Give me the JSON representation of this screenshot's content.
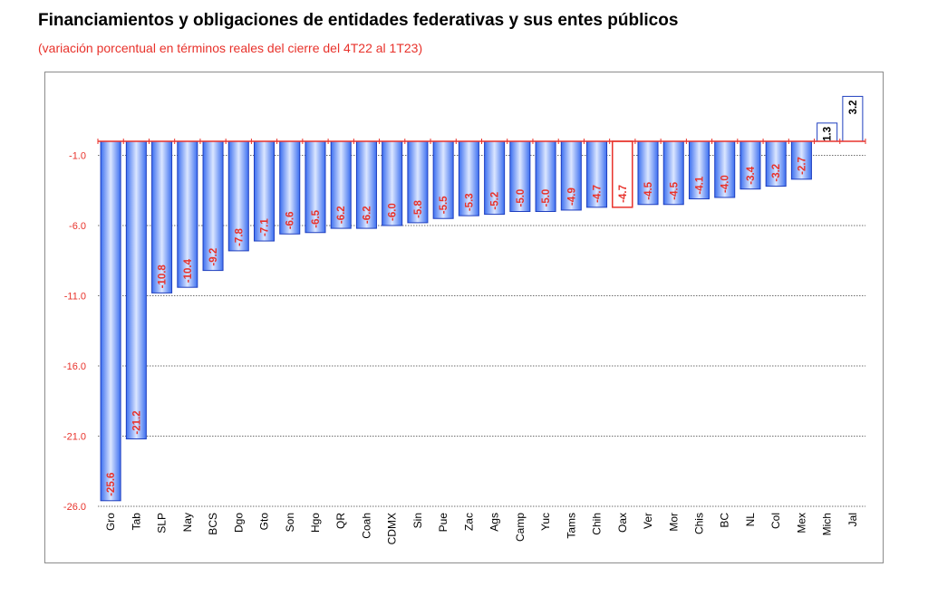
{
  "header": {
    "title": "Financiamientos y obligaciones de entidades federativas y sus entes públicos",
    "subtitle": "(variación porcentual en términos reales del cierre del 4T22 al 1T23)"
  },
  "chart_data": {
    "type": "bar",
    "title": "Financiamientos y obligaciones de entidades federativas y sus entes públicos",
    "subtitle": "(variación porcentual en términos reales del cierre del 4T22 al 1T23)",
    "categories": [
      "Gro",
      "Tab",
      "SLP",
      "Nay",
      "BCS",
      "Dgo",
      "Gto",
      "Son",
      "Hgo",
      "QR",
      "Coah",
      "CDMX",
      "Sin",
      "Pue",
      "Zac",
      "Ags",
      "Camp",
      "Yuc",
      "Tams",
      "Chih",
      "Oax",
      "Ver",
      "Mor",
      "Chis",
      "BC",
      "NL",
      "Col",
      "Mex",
      "Mich",
      "Jal"
    ],
    "values": [
      -25.6,
      -21.2,
      -10.8,
      -10.4,
      -9.2,
      -7.8,
      -7.1,
      -6.6,
      -6.5,
      -6.2,
      -6.2,
      -6.0,
      -5.8,
      -5.5,
      -5.3,
      -5.2,
      -5.0,
      -5.0,
      -4.9,
      -4.7,
      -4.7,
      -4.5,
      -4.5,
      -4.1,
      -4.0,
      -3.4,
      -3.2,
      -2.7,
      1.3,
      3.2
    ],
    "data_labels": [
      "-25.6",
      "-21.2",
      "-10.8",
      "-10.4",
      "-9.2",
      "-7.8",
      "-7.1",
      "-6.6",
      "-6.5",
      "-6.2",
      "-6.2",
      "-6.0",
      "-5.8",
      "-5.5",
      "-5.3",
      "-5.2",
      "-5.0",
      "-5.0",
      "-4.9",
      "-4.7",
      "-4.7",
      "-4.5",
      "-4.5",
      "-4.1",
      "-4.0",
      "-3.4",
      "-3.2",
      "-2.7",
      "1.3",
      "3.2"
    ],
    "yticks": [
      -1.0,
      -6.0,
      -11.0,
      -16.0,
      -21.0,
      -26.0
    ],
    "ytick_labels": [
      "-1.0",
      "-6.0",
      "-11.0",
      "-16.0",
      "-21.0",
      "-26.0"
    ],
    "ylim": [
      -26.0,
      3.2
    ],
    "xlabel": "",
    "ylabel": "",
    "highlight_category": "Oax",
    "grid": true,
    "legend": "none",
    "colors": {
      "bar_fill_edge": "#3c6ff0",
      "bar_fill_center": "#dbe6ff",
      "bar_stroke": "#1f3fbf",
      "highlight_stroke": "#e8322b",
      "positive_fill": "#ffffff",
      "negative_label": "#e8322b",
      "positive_label": "#000000",
      "zero_line": "#e8322b",
      "grid": "#6e6e6e"
    }
  }
}
